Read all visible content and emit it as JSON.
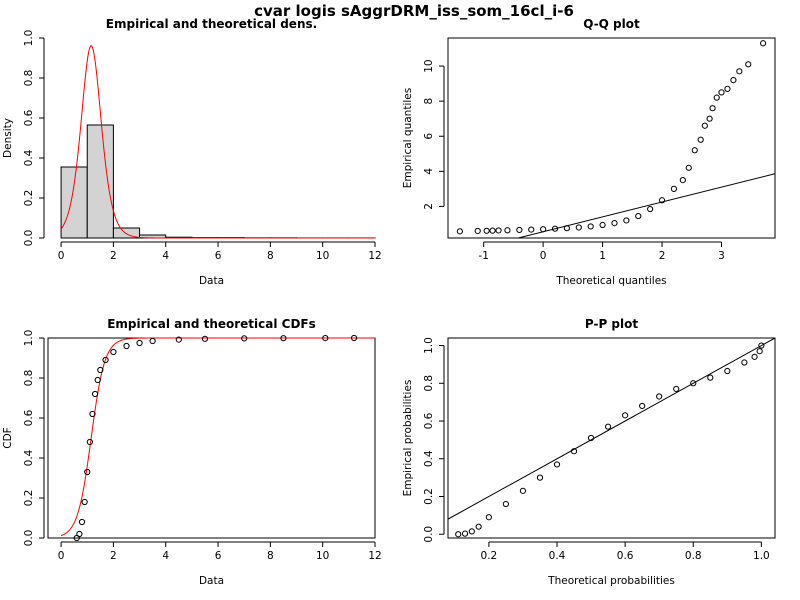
{
  "title": "cvar logis sAggrDRM_iss_som_16cl_i-6",
  "colors": {
    "hist_fill": "#d3d3d3",
    "fit_curve": "#ff0000",
    "points": "#000000",
    "line": "#000000"
  },
  "chart_data": [
    {
      "type": "histogram",
      "title": "Empirical and theoretical dens.",
      "xlabel": "Data",
      "ylabel": "Density",
      "xlim": [
        -0.5,
        12
      ],
      "ylim": [
        0,
        1
      ],
      "xticks": [
        0,
        2,
        4,
        6,
        8,
        10,
        12
      ],
      "yticks": [
        0.0,
        0.2,
        0.4,
        0.6,
        0.8,
        1.0
      ],
      "xtick_labels": [
        "0",
        "2",
        "4",
        "6",
        "8",
        "10",
        "12"
      ],
      "ytick_labels": [
        "0.0",
        "0.2",
        "0.4",
        "0.6",
        "0.8",
        "1.0"
      ],
      "bins": [
        {
          "x0": 0,
          "x1": 1,
          "density": 0.355
        },
        {
          "x0": 1,
          "x1": 2,
          "density": 0.565
        },
        {
          "x0": 2,
          "x1": 3,
          "density": 0.05
        },
        {
          "x0": 3,
          "x1": 4,
          "density": 0.015
        },
        {
          "x0": 4,
          "x1": 5,
          "density": 0.004
        },
        {
          "x0": 5,
          "x1": 6,
          "density": 0.002
        },
        {
          "x0": 6,
          "x1": 7,
          "density": 0.002
        },
        {
          "x0": 7,
          "x1": 8,
          "density": 0.001
        },
        {
          "x0": 8,
          "x1": 9,
          "density": 0.001
        },
        {
          "x0": 9,
          "x1": 10,
          "density": 0.0005
        },
        {
          "x0": 10,
          "x1": 11,
          "density": 0.0005
        },
        {
          "x0": 11,
          "x1": 12,
          "density": 0.0005
        }
      ],
      "theoretical": {
        "distribution": "logis",
        "location": 1.15,
        "scale": 0.26
      }
    },
    {
      "type": "scatter",
      "title": "Q-Q plot",
      "xlabel": "Theoretical quantiles",
      "ylabel": "Empirical quantiles",
      "xlim": [
        -1.6,
        3.9
      ],
      "ylim": [
        0.2,
        11.6
      ],
      "xticks": [
        -1,
        0,
        1,
        2,
        3
      ],
      "yticks": [
        2,
        4,
        6,
        8,
        10
      ],
      "xtick_labels": [
        "-1",
        "0",
        "1",
        "2",
        "3"
      ],
      "ytick_labels": [
        "2",
        "4",
        "6",
        "8",
        "10"
      ],
      "points": [
        [
          -1.4,
          0.58
        ],
        [
          -1.1,
          0.6
        ],
        [
          -0.95,
          0.61
        ],
        [
          -0.85,
          0.62
        ],
        [
          -0.75,
          0.63
        ],
        [
          -0.6,
          0.64
        ],
        [
          -0.4,
          0.66
        ],
        [
          -0.2,
          0.68
        ],
        [
          0.0,
          0.7
        ],
        [
          0.2,
          0.73
        ],
        [
          0.4,
          0.76
        ],
        [
          0.6,
          0.8
        ],
        [
          0.8,
          0.86
        ],
        [
          1.0,
          0.94
        ],
        [
          1.2,
          1.05
        ],
        [
          1.4,
          1.2
        ],
        [
          1.6,
          1.45
        ],
        [
          1.8,
          1.85
        ],
        [
          2.0,
          2.35
        ],
        [
          2.2,
          3.0
        ],
        [
          2.35,
          3.5
        ],
        [
          2.45,
          4.2
        ],
        [
          2.55,
          5.2
        ],
        [
          2.65,
          5.8
        ],
        [
          2.72,
          6.6
        ],
        [
          2.8,
          7.0
        ],
        [
          2.85,
          7.6
        ],
        [
          2.92,
          8.2
        ],
        [
          3.0,
          8.5
        ],
        [
          3.1,
          8.7
        ],
        [
          3.2,
          9.2
        ],
        [
          3.3,
          9.7
        ],
        [
          3.45,
          10.1
        ],
        [
          3.7,
          11.3
        ]
      ],
      "reference_line": {
        "x": [
          -1.6,
          3.9
        ],
        "y": [
          -0.8,
          3.86
        ]
      }
    },
    {
      "type": "line",
      "title": "Empirical and theoretical CDFs",
      "xlabel": "Data",
      "ylabel": "CDF",
      "xlim": [
        -0.5,
        12
      ],
      "ylim": [
        0,
        1
      ],
      "xticks": [
        0,
        2,
        4,
        6,
        8,
        10,
        12
      ],
      "yticks": [
        0.0,
        0.2,
        0.4,
        0.6,
        0.8,
        1.0
      ],
      "xtick_labels": [
        "0",
        "2",
        "4",
        "6",
        "8",
        "10",
        "12"
      ],
      "ytick_labels": [
        "0.0",
        "0.2",
        "0.4",
        "0.6",
        "0.8",
        "1.0"
      ],
      "empirical": [
        [
          0.6,
          0.0
        ],
        [
          0.7,
          0.02
        ],
        [
          0.8,
          0.08
        ],
        [
          0.9,
          0.18
        ],
        [
          1.0,
          0.33
        ],
        [
          1.1,
          0.48
        ],
        [
          1.2,
          0.62
        ],
        [
          1.3,
          0.72
        ],
        [
          1.4,
          0.79
        ],
        [
          1.5,
          0.84
        ],
        [
          1.7,
          0.89
        ],
        [
          2.0,
          0.93
        ],
        [
          2.5,
          0.96
        ],
        [
          3.0,
          0.975
        ],
        [
          3.5,
          0.985
        ],
        [
          4.5,
          0.992
        ],
        [
          5.5,
          0.996
        ],
        [
          7.0,
          0.998
        ],
        [
          8.5,
          0.999
        ],
        [
          10.1,
          0.9995
        ],
        [
          11.2,
          1.0
        ]
      ],
      "theoretical": {
        "distribution": "logis",
        "location": 1.15,
        "scale": 0.26
      }
    },
    {
      "type": "scatter",
      "title": "P-P plot",
      "xlabel": "Theoretical probabilities",
      "ylabel": "Empirical probabilities",
      "xlim": [
        0.08,
        1.04
      ],
      "ylim": [
        -0.02,
        1.04
      ],
      "xticks": [
        0.2,
        0.4,
        0.6,
        0.8,
        1.0
      ],
      "yticks": [
        0.0,
        0.2,
        0.4,
        0.6,
        0.8,
        1.0
      ],
      "xtick_labels": [
        "0.2",
        "0.4",
        "0.6",
        "0.8",
        "1.0"
      ],
      "ytick_labels": [
        "0.0",
        "0.2",
        "0.4",
        "0.6",
        "0.8",
        "1.0"
      ],
      "points": [
        [
          0.11,
          0.0
        ],
        [
          0.13,
          0.003
        ],
        [
          0.15,
          0.015
        ],
        [
          0.17,
          0.04
        ],
        [
          0.2,
          0.09
        ],
        [
          0.25,
          0.16
        ],
        [
          0.3,
          0.23
        ],
        [
          0.35,
          0.3
        ],
        [
          0.4,
          0.37
        ],
        [
          0.45,
          0.44
        ],
        [
          0.5,
          0.51
        ],
        [
          0.55,
          0.57
        ],
        [
          0.6,
          0.63
        ],
        [
          0.65,
          0.68
        ],
        [
          0.7,
          0.73
        ],
        [
          0.75,
          0.77
        ],
        [
          0.8,
          0.8
        ],
        [
          0.85,
          0.83
        ],
        [
          0.9,
          0.865
        ],
        [
          0.95,
          0.91
        ],
        [
          0.98,
          0.94
        ],
        [
          0.995,
          0.97
        ],
        [
          1.0,
          1.0
        ]
      ],
      "reference_line": {
        "x": [
          0.08,
          1.04
        ],
        "y": [
          0.08,
          1.04
        ]
      }
    }
  ]
}
